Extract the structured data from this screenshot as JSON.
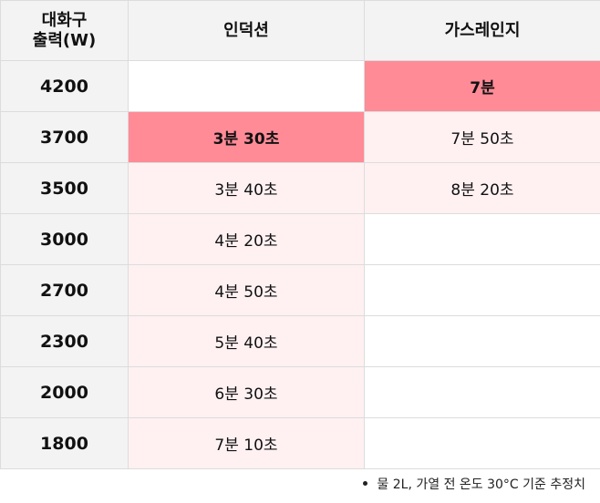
{
  "table": {
    "headers": {
      "power_line1": "대화구",
      "power_line2": "출력(W)",
      "induction": "인덕션",
      "gas": "가스레인지"
    },
    "rows": [
      {
        "power": "4200",
        "induction": "",
        "gas": "7분"
      },
      {
        "power": "3700",
        "induction": "3분 30초",
        "gas": "7분 50초"
      },
      {
        "power": "3500",
        "induction": "3분 40초",
        "gas": "8분 20초"
      },
      {
        "power": "3000",
        "induction": "4분 20초",
        "gas": ""
      },
      {
        "power": "2700",
        "induction": "4분 50초",
        "gas": ""
      },
      {
        "power": "2300",
        "induction": "5분 40초",
        "gas": ""
      },
      {
        "power": "2000",
        "induction": "6분 30초",
        "gas": ""
      },
      {
        "power": "1800",
        "induction": "7분 10초",
        "gas": ""
      }
    ]
  },
  "footnote": "물 2L, 가열 전 온도 30°C 기준 추정치",
  "colors": {
    "header_bg": "#f3f3f3",
    "tint": "#fff1f2",
    "highlight": "#ff8b97",
    "border": "#dcdcdc"
  }
}
